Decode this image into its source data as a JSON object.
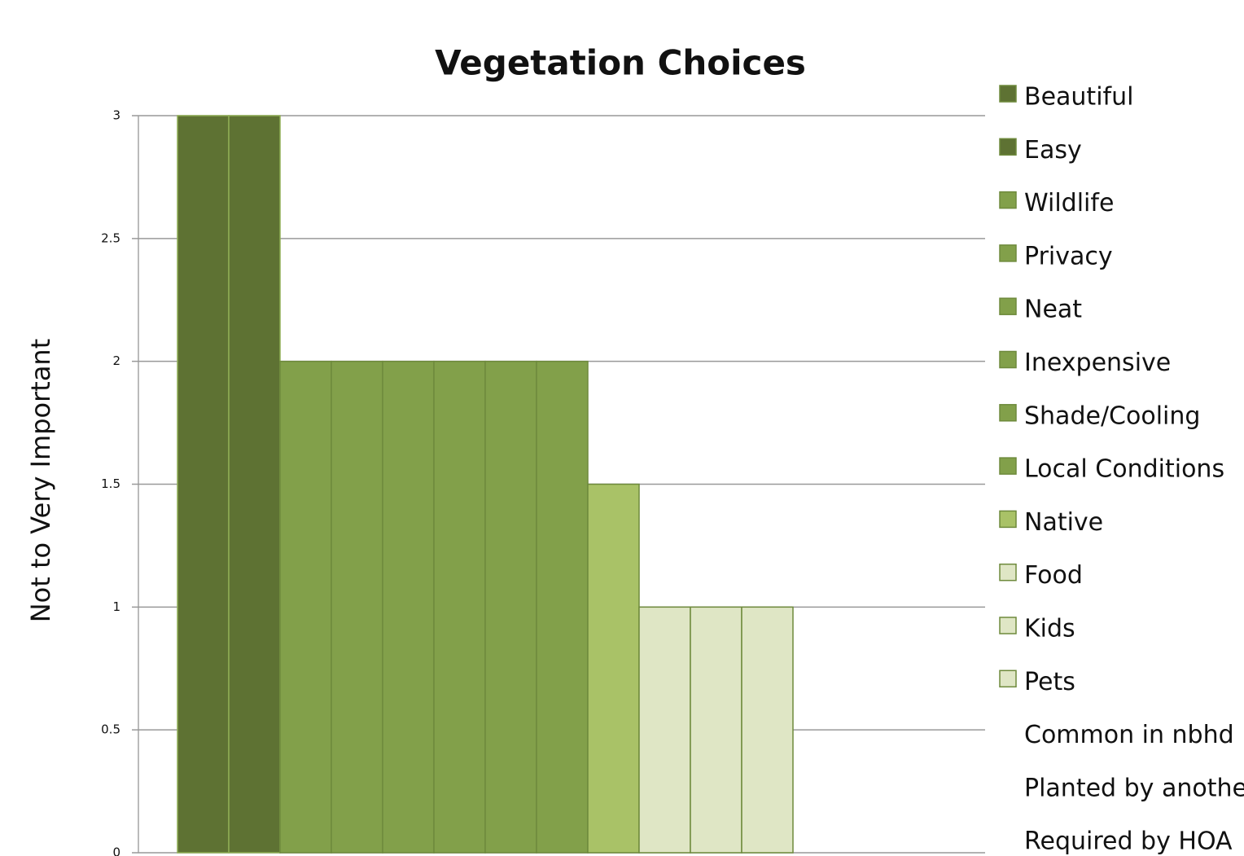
{
  "chart_data": {
    "type": "bar",
    "title": "Vegetation Choices",
    "y_label": "Not to Very Important",
    "categories": [
      "Beautiful",
      "Easy",
      "Wildlife",
      "Privacy",
      "Neat",
      "Inexpensive",
      "Shade/Cooling",
      "Local Conditions",
      "Native",
      "Food",
      "Kids",
      "Pets",
      "Common in nbhd",
      "Planted by another",
      "Required by HOA"
    ],
    "values": [
      3,
      3,
      2,
      2,
      2,
      2,
      2,
      2,
      1.5,
      1,
      1,
      1,
      0,
      0,
      0
    ],
    "colors": [
      "#5e7233",
      "#5e7233",
      "#82a04a",
      "#82a04a",
      "#82a04a",
      "#82a04a",
      "#82a04a",
      "#82a04a",
      "#a9c267",
      "#dfe6c5",
      "#dfe6c5",
      "#dfe6c5",
      "#ffffff",
      "#ffffff",
      "#ffffff"
    ],
    "ylim": [
      0,
      3
    ],
    "yticks": [
      0,
      0.5,
      1,
      1.5,
      2,
      2.5,
      3
    ],
    "grid": true,
    "legend": "right"
  }
}
